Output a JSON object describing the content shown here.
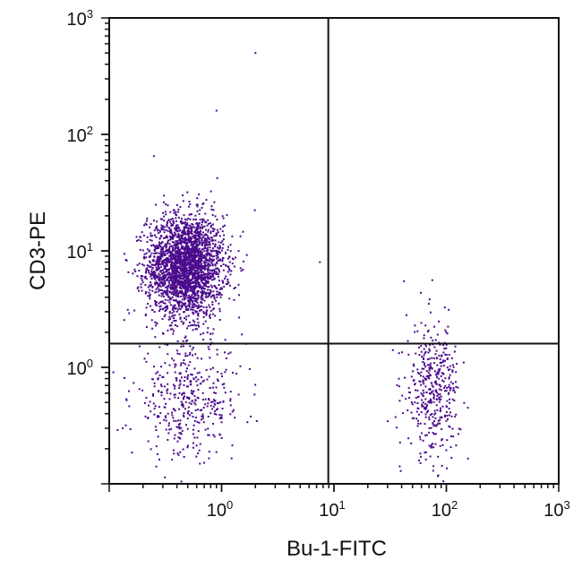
{
  "chart_data": {
    "type": "scatter",
    "title": "",
    "xlabel": "Bu-1-FITC",
    "ylabel": "CD3-PE",
    "xscale": "log",
    "yscale": "log",
    "xlim": [
      0.1,
      1000
    ],
    "ylim": [
      0.1,
      1000
    ],
    "grid": false,
    "x_ticks": [
      {
        "base": "10",
        "exp": "0",
        "value": 1
      },
      {
        "base": "10",
        "exp": "1",
        "value": 10
      },
      {
        "base": "10",
        "exp": "2",
        "value": 100
      },
      {
        "base": "10",
        "exp": "3",
        "value": 1000
      }
    ],
    "y_ticks": [
      {
        "base": "10",
        "exp": "0",
        "value": 1
      },
      {
        "base": "10",
        "exp": "1",
        "value": 10
      },
      {
        "base": "10",
        "exp": "2",
        "value": 100
      },
      {
        "base": "10",
        "exp": "3",
        "value": 1000
      }
    ],
    "quadrant_gates": {
      "x": 8.9,
      "y": 1.6
    },
    "point_color": "#4b0a8c",
    "clusters": [
      {
        "name_hint": "Bu-1 neg / CD3 pos",
        "count": 2600,
        "x_center_log10": -0.32,
        "x_sd_log10": 0.17,
        "y_center_log10": 0.87,
        "y_sd_log10": 0.22
      },
      {
        "name_hint": "Bu-1 neg / CD3 neg",
        "count": 420,
        "x_center_log10": -0.3,
        "x_sd_log10": 0.25,
        "y_center_log10": -0.28,
        "y_sd_log10": 0.25
      },
      {
        "name_hint": "Bu-1 pos / CD3 neg",
        "count": 420,
        "x_center_log10": 1.88,
        "x_sd_log10": 0.12,
        "y_center_log10": -0.2,
        "y_sd_log10": 0.28
      }
    ],
    "outliers": [
      {
        "x": 2.0,
        "y": 500
      },
      {
        "x": 0.9,
        "y": 160
      },
      {
        "x": 0.25,
        "y": 65
      },
      {
        "x": 7.5,
        "y": 8
      },
      {
        "x": 42,
        "y": 5.5
      },
      {
        "x": 75,
        "y": 5.6
      },
      {
        "x": 0.45,
        "y": 30
      }
    ]
  }
}
